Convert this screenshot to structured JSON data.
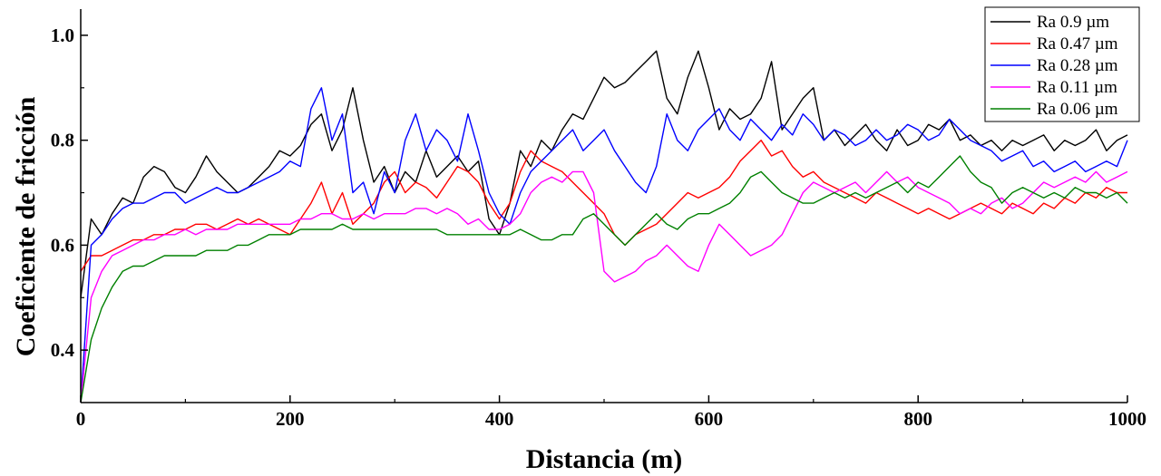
{
  "chart_data": {
    "type": "line",
    "xlabel": "Distancia (m)",
    "ylabel": "Coeficiente de fricción",
    "xlim": [
      0,
      1000
    ],
    "ylim": [
      0.3,
      1.05
    ],
    "x_ticks": [
      0,
      200,
      400,
      600,
      800,
      1000
    ],
    "x_tick_labels": [
      "0",
      "200",
      "400",
      "600",
      "800",
      "1000"
    ],
    "y_ticks": [
      0.4,
      0.6,
      0.8,
      1.0
    ],
    "y_tick_labels": [
      "0.4",
      "0.6",
      "0.8",
      "1.0"
    ],
    "grid": false,
    "legend_position": "top-right",
    "x": [
      0,
      10,
      20,
      30,
      40,
      50,
      60,
      70,
      80,
      90,
      100,
      110,
      120,
      130,
      140,
      150,
      160,
      170,
      180,
      190,
      200,
      210,
      220,
      230,
      240,
      250,
      260,
      270,
      280,
      290,
      300,
      310,
      320,
      330,
      340,
      350,
      360,
      370,
      380,
      390,
      400,
      410,
      420,
      430,
      440,
      450,
      460,
      470,
      480,
      490,
      500,
      510,
      520,
      530,
      540,
      550,
      560,
      570,
      580,
      590,
      600,
      610,
      620,
      630,
      640,
      650,
      660,
      670,
      680,
      690,
      700,
      710,
      720,
      730,
      740,
      750,
      760,
      770,
      780,
      790,
      800,
      810,
      820,
      830,
      840,
      850,
      860,
      870,
      880,
      890,
      900,
      910,
      920,
      930,
      940,
      950,
      960,
      970,
      980,
      990,
      1000
    ],
    "series": [
      {
        "name": "Ra 0.9 µm",
        "color": "#000000",
        "values": [
          0.5,
          0.65,
          0.62,
          0.66,
          0.69,
          0.68,
          0.73,
          0.75,
          0.74,
          0.71,
          0.7,
          0.73,
          0.77,
          0.74,
          0.72,
          0.7,
          0.71,
          0.73,
          0.75,
          0.78,
          0.77,
          0.79,
          0.83,
          0.85,
          0.78,
          0.82,
          0.9,
          0.8,
          0.72,
          0.75,
          0.7,
          0.74,
          0.72,
          0.78,
          0.73,
          0.75,
          0.77,
          0.74,
          0.76,
          0.65,
          0.62,
          0.68,
          0.78,
          0.75,
          0.8,
          0.78,
          0.82,
          0.85,
          0.84,
          0.88,
          0.92,
          0.9,
          0.91,
          0.93,
          0.95,
          0.97,
          0.88,
          0.85,
          0.92,
          0.97,
          0.9,
          0.82,
          0.86,
          0.84,
          0.85,
          0.88,
          0.95,
          0.82,
          0.85,
          0.88,
          0.9,
          0.8,
          0.82,
          0.79,
          0.81,
          0.83,
          0.8,
          0.78,
          0.82,
          0.79,
          0.8,
          0.83,
          0.82,
          0.84,
          0.8,
          0.81,
          0.79,
          0.8,
          0.78,
          0.8,
          0.79,
          0.8,
          0.81,
          0.78,
          0.8,
          0.79,
          0.8,
          0.82,
          0.78,
          0.8,
          0.81
        ]
      },
      {
        "name": "Ra 0.47 µm",
        "color": "#ff0000",
        "values": [
          0.55,
          0.58,
          0.58,
          0.59,
          0.6,
          0.61,
          0.61,
          0.62,
          0.62,
          0.63,
          0.63,
          0.64,
          0.64,
          0.63,
          0.64,
          0.65,
          0.64,
          0.65,
          0.64,
          0.63,
          0.62,
          0.65,
          0.68,
          0.72,
          0.66,
          0.7,
          0.64,
          0.66,
          0.68,
          0.72,
          0.74,
          0.7,
          0.72,
          0.71,
          0.69,
          0.72,
          0.75,
          0.74,
          0.72,
          0.68,
          0.65,
          0.68,
          0.74,
          0.78,
          0.76,
          0.75,
          0.74,
          0.72,
          0.7,
          0.68,
          0.66,
          0.62,
          0.6,
          0.62,
          0.63,
          0.64,
          0.66,
          0.68,
          0.7,
          0.69,
          0.7,
          0.71,
          0.73,
          0.76,
          0.78,
          0.8,
          0.77,
          0.78,
          0.75,
          0.73,
          0.74,
          0.72,
          0.71,
          0.7,
          0.69,
          0.68,
          0.7,
          0.69,
          0.68,
          0.67,
          0.66,
          0.67,
          0.66,
          0.65,
          0.66,
          0.67,
          0.68,
          0.67,
          0.66,
          0.68,
          0.67,
          0.66,
          0.68,
          0.67,
          0.69,
          0.68,
          0.7,
          0.69,
          0.71,
          0.7,
          0.7
        ]
      },
      {
        "name": "Ra 0.28 µm",
        "color": "#0000ff",
        "values": [
          0.3,
          0.6,
          0.62,
          0.65,
          0.67,
          0.68,
          0.68,
          0.69,
          0.7,
          0.7,
          0.68,
          0.69,
          0.7,
          0.71,
          0.7,
          0.7,
          0.71,
          0.72,
          0.73,
          0.74,
          0.76,
          0.75,
          0.86,
          0.9,
          0.8,
          0.85,
          0.7,
          0.72,
          0.66,
          0.74,
          0.7,
          0.8,
          0.85,
          0.78,
          0.82,
          0.8,
          0.76,
          0.85,
          0.78,
          0.7,
          0.66,
          0.64,
          0.7,
          0.74,
          0.76,
          0.78,
          0.8,
          0.82,
          0.78,
          0.8,
          0.82,
          0.78,
          0.75,
          0.72,
          0.7,
          0.75,
          0.85,
          0.8,
          0.78,
          0.82,
          0.84,
          0.86,
          0.82,
          0.8,
          0.84,
          0.82,
          0.8,
          0.83,
          0.81,
          0.85,
          0.83,
          0.8,
          0.82,
          0.81,
          0.79,
          0.8,
          0.82,
          0.8,
          0.81,
          0.83,
          0.82,
          0.8,
          0.81,
          0.84,
          0.82,
          0.8,
          0.79,
          0.78,
          0.76,
          0.77,
          0.78,
          0.75,
          0.76,
          0.74,
          0.75,
          0.76,
          0.74,
          0.75,
          0.76,
          0.75,
          0.8
        ]
      },
      {
        "name": "Ra 0.11 µm",
        "color": "#ff00ff",
        "values": [
          0.3,
          0.5,
          0.55,
          0.58,
          0.59,
          0.6,
          0.61,
          0.61,
          0.62,
          0.62,
          0.63,
          0.62,
          0.63,
          0.63,
          0.63,
          0.64,
          0.64,
          0.64,
          0.64,
          0.64,
          0.64,
          0.65,
          0.65,
          0.66,
          0.66,
          0.65,
          0.65,
          0.66,
          0.65,
          0.66,
          0.66,
          0.66,
          0.67,
          0.67,
          0.66,
          0.67,
          0.66,
          0.64,
          0.65,
          0.63,
          0.63,
          0.64,
          0.66,
          0.7,
          0.72,
          0.73,
          0.72,
          0.74,
          0.74,
          0.7,
          0.55,
          0.53,
          0.54,
          0.55,
          0.57,
          0.58,
          0.6,
          0.58,
          0.56,
          0.55,
          0.6,
          0.64,
          0.62,
          0.6,
          0.58,
          0.59,
          0.6,
          0.62,
          0.66,
          0.7,
          0.72,
          0.71,
          0.7,
          0.71,
          0.72,
          0.7,
          0.72,
          0.74,
          0.72,
          0.73,
          0.71,
          0.7,
          0.69,
          0.68,
          0.66,
          0.67,
          0.66,
          0.68,
          0.69,
          0.67,
          0.68,
          0.7,
          0.72,
          0.71,
          0.72,
          0.73,
          0.72,
          0.74,
          0.72,
          0.73,
          0.74
        ]
      },
      {
        "name": "Ra 0.06 µm",
        "color": "#008000",
        "values": [
          0.3,
          0.42,
          0.48,
          0.52,
          0.55,
          0.56,
          0.56,
          0.57,
          0.58,
          0.58,
          0.58,
          0.58,
          0.59,
          0.59,
          0.59,
          0.6,
          0.6,
          0.61,
          0.62,
          0.62,
          0.62,
          0.63,
          0.63,
          0.63,
          0.63,
          0.64,
          0.63,
          0.63,
          0.63,
          0.63,
          0.63,
          0.63,
          0.63,
          0.63,
          0.63,
          0.62,
          0.62,
          0.62,
          0.62,
          0.62,
          0.62,
          0.62,
          0.63,
          0.62,
          0.61,
          0.61,
          0.62,
          0.62,
          0.65,
          0.66,
          0.64,
          0.62,
          0.6,
          0.62,
          0.64,
          0.66,
          0.64,
          0.63,
          0.65,
          0.66,
          0.66,
          0.67,
          0.68,
          0.7,
          0.73,
          0.74,
          0.72,
          0.7,
          0.69,
          0.68,
          0.68,
          0.69,
          0.7,
          0.69,
          0.7,
          0.69,
          0.7,
          0.71,
          0.72,
          0.7,
          0.72,
          0.71,
          0.73,
          0.75,
          0.77,
          0.74,
          0.72,
          0.71,
          0.68,
          0.7,
          0.71,
          0.7,
          0.69,
          0.7,
          0.69,
          0.71,
          0.7,
          0.7,
          0.69,
          0.7,
          0.68
        ]
      }
    ]
  }
}
